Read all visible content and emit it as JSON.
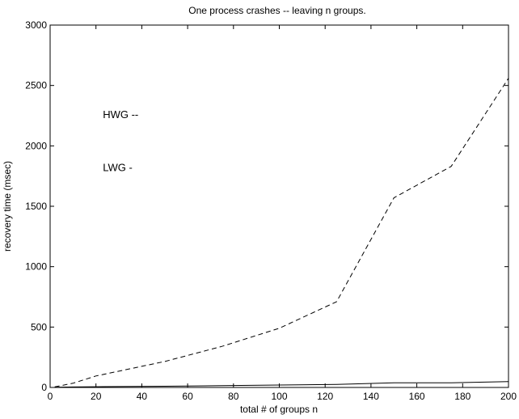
{
  "chart_data": {
    "type": "line",
    "title": "One process crashes -- leaving n groups.",
    "xlabel": "total # of groups n",
    "ylabel": "recovery time (msec)",
    "xlim": [
      0,
      200
    ],
    "ylim": [
      0,
      3000
    ],
    "xticks": [
      0,
      20,
      40,
      60,
      80,
      100,
      120,
      140,
      160,
      180,
      200
    ],
    "yticks": [
      0,
      500,
      1000,
      1500,
      2000,
      2500,
      3000
    ],
    "grid": false,
    "series": [
      {
        "name": "HWG",
        "line_style": "dashed",
        "color": "#000000",
        "x": [
          2,
          10,
          20,
          50,
          75,
          100,
          125,
          150,
          175,
          200
        ],
        "y": [
          5,
          35,
          95,
          215,
          340,
          490,
          710,
          1570,
          1830,
          2560
        ]
      },
      {
        "name": "LWG",
        "line_style": "solid",
        "color": "#000000",
        "x": [
          2,
          10,
          20,
          50,
          75,
          100,
          125,
          150,
          175,
          200
        ],
        "y": [
          2,
          4,
          6,
          10,
          15,
          20,
          25,
          38,
          38,
          48
        ]
      }
    ],
    "annotations": [
      {
        "text": "HWG --",
        "x": 23,
        "y": 2230
      },
      {
        "text": "LWG -",
        "x": 23,
        "y": 1790
      }
    ]
  }
}
